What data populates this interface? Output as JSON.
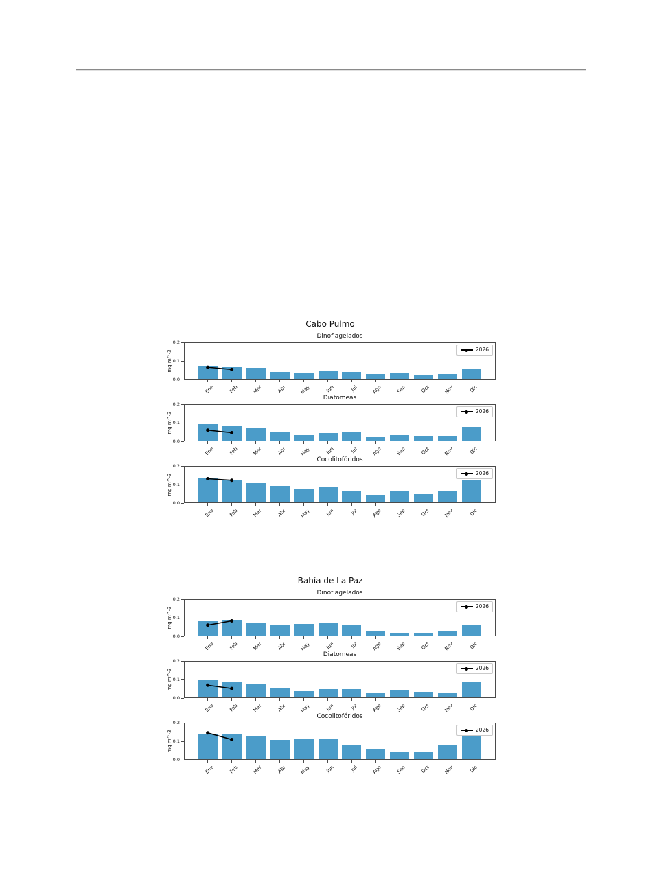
{
  "page": {
    "background": "#ffffff"
  },
  "divider": {
    "color": "#8a8a8a"
  },
  "chart_data": [
    {
      "type": "bar",
      "title": "Cabo Pulmo",
      "ylabel": "mg m^-3",
      "ylim": [
        0,
        0.2
      ],
      "yticks": [
        "0.0",
        "0.1",
        "0.2"
      ],
      "grid": false,
      "legend_label": "2026",
      "legend_position": "upper right",
      "bar_color": "#4b9cc9",
      "line_color": "#000000",
      "categories": [
        "Ene",
        "Feb",
        "Mar",
        "Abr",
        "May",
        "Jun",
        "Jul",
        "Ago",
        "Sep",
        "Oct",
        "Nov",
        "Dic"
      ],
      "subplots": [
        {
          "title": "Dinoflagelados",
          "bar_values": [
            0.069,
            0.068,
            0.06,
            0.038,
            0.03,
            0.041,
            0.038,
            0.025,
            0.033,
            0.023,
            0.026,
            0.056
          ],
          "line_series": {
            "name": "2026",
            "x": [
              "Ene",
              "Feb"
            ],
            "values": [
              0.07,
              0.058
            ]
          }
        },
        {
          "title": "Diatomeas",
          "bar_values": [
            0.088,
            0.079,
            0.07,
            0.044,
            0.031,
            0.041,
            0.047,
            0.022,
            0.031,
            0.026,
            0.026,
            0.073
          ],
          "line_series": {
            "name": "2026",
            "x": [
              "Ene",
              "Feb"
            ],
            "values": [
              0.064,
              0.05
            ]
          }
        },
        {
          "title": "Cocolitofóridos",
          "bar_values": [
            0.135,
            0.117,
            0.106,
            0.089,
            0.073,
            0.08,
            0.059,
            0.042,
            0.063,
            0.044,
            0.06,
            0.12
          ],
          "line_series": {
            "name": "2026",
            "x": [
              "Ene",
              "Feb"
            ],
            "values": [
              0.135,
              0.127
            ]
          }
        }
      ]
    },
    {
      "type": "bar",
      "title": "Bahía de La Paz",
      "ylabel": "mg m^-3",
      "ylim": [
        0,
        0.2
      ],
      "yticks": [
        "0.0",
        "0.1",
        "0.2"
      ],
      "grid": false,
      "legend_label": "2026",
      "legend_position": "upper right",
      "bar_color": "#4b9cc9",
      "line_color": "#000000",
      "categories": [
        "Ene",
        "Feb",
        "Mar",
        "Abr",
        "May",
        "Jun",
        "Jul",
        "Ago",
        "Sep",
        "Oct",
        "Nov",
        "Dic"
      ],
      "subplots": [
        {
          "title": "Dinoflagelados",
          "bar_values": [
            0.078,
            0.084,
            0.071,
            0.06,
            0.062,
            0.071,
            0.059,
            0.023,
            0.015,
            0.014,
            0.024,
            0.059
          ],
          "line_series": {
            "name": "2026",
            "x": [
              "Ene",
              "Feb"
            ],
            "values": [
              0.064,
              0.087
            ]
          }
        },
        {
          "title": "Diatomeas",
          "bar_values": [
            0.091,
            0.08,
            0.071,
            0.048,
            0.034,
            0.043,
            0.044,
            0.022,
            0.039,
            0.028,
            0.026,
            0.082
          ],
          "line_series": {
            "name": "2026",
            "x": [
              "Ene",
              "Feb"
            ],
            "values": [
              0.073,
              0.055
            ]
          }
        },
        {
          "title": "Cocolitofóridos",
          "bar_values": [
            0.137,
            0.135,
            0.123,
            0.105,
            0.11,
            0.109,
            0.079,
            0.05,
            0.039,
            0.04,
            0.078,
            0.134
          ],
          "line_series": {
            "name": "2026",
            "x": [
              "Ene",
              "Feb"
            ],
            "values": [
              0.149,
              0.113
            ]
          }
        }
      ]
    }
  ]
}
